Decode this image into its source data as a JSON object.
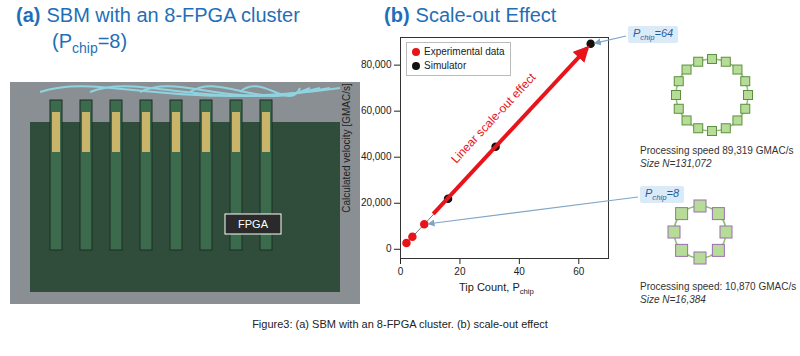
{
  "figure": {
    "caption": "Figure3: (a) SBM with an 8-FPGA cluster. (b) scale-out effect",
    "panel_a": {
      "label": "(a)",
      "title": "SBM with an 8-FPGA cluster",
      "subtitle": {
        "base": "(P",
        "sub": "chip",
        "rest": "=8)"
      },
      "photo_label": "FPGA"
    },
    "panel_b": {
      "label": "(b)",
      "title": "Scale-out Effect",
      "callouts": [
        {
          "tag": {
            "base": "P",
            "sub": "chip",
            "rest": "=64"
          },
          "speed_text": "Processing speed 89,319 GMAC/s",
          "size_text": "Size N=131,072"
        },
        {
          "tag": {
            "base": "P",
            "sub": "chip",
            "rest": "=8"
          },
          "speed_text": "Processing speed: 10,870 GMAC/s",
          "size_text": "Size N=16,384"
        }
      ]
    }
  },
  "chart_data": {
    "type": "scatter",
    "xlabel": {
      "base": "Tip Count, P",
      "sub": "chip"
    },
    "ylabel": "Calculated velocity [GMAC/s]",
    "annotation": "Linear scale-out effect",
    "xlim": [
      0,
      70
    ],
    "xticks": [
      0,
      20,
      40,
      60
    ],
    "ylim": [
      -4000,
      92000
    ],
    "yticks": [
      0,
      {
        "value": 20000,
        "label": "20,000"
      },
      {
        "value": 40000,
        "label": "40,000"
      },
      {
        "value": 60000,
        "label": "60,000"
      },
      {
        "value": 80000,
        "label": "80,000"
      }
    ],
    "legend": "top-left",
    "series": [
      {
        "name": "Experimental data",
        "color": "#e8141b",
        "marker": "circle",
        "x": [
          2,
          4,
          8
        ],
        "values": [
          2700,
          5400,
          10870
        ]
      },
      {
        "name": "Simulator",
        "color": "#111111",
        "marker": "circle",
        "x": [
          16,
          32,
          64
        ],
        "values": [
          22000,
          44500,
          89319
        ]
      }
    ]
  }
}
